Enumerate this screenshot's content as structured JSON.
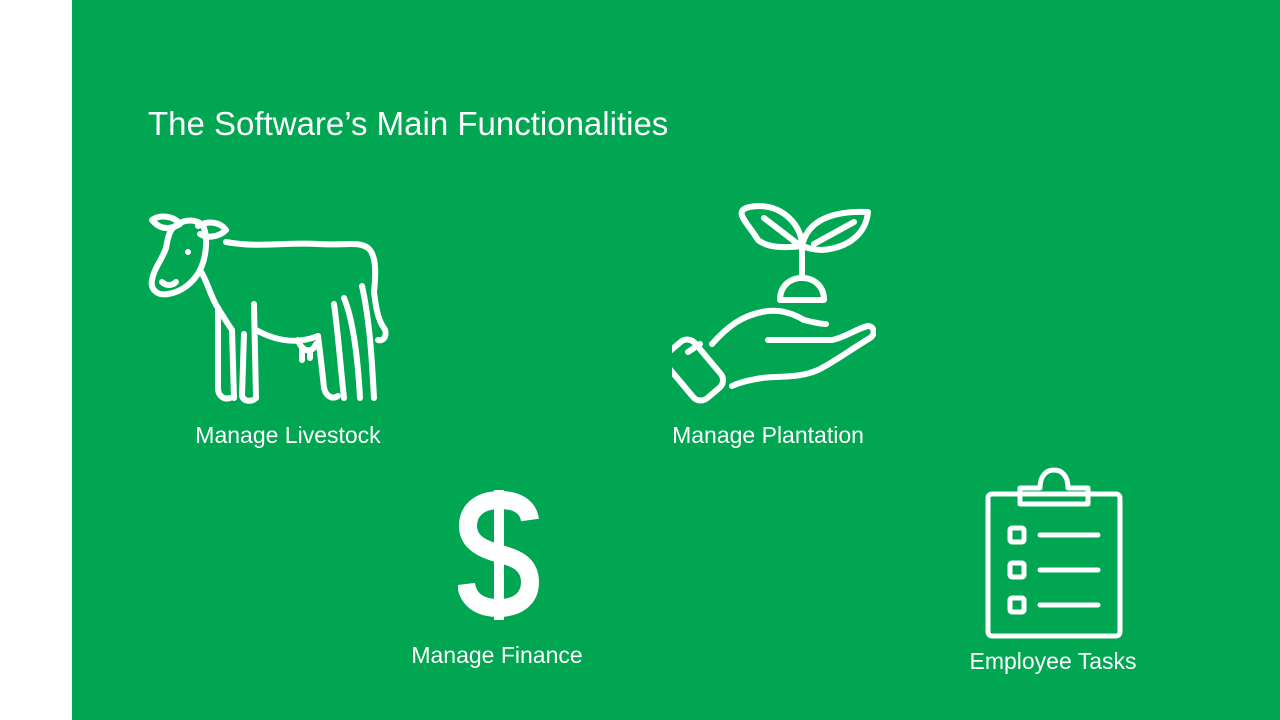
{
  "slide": {
    "background_color": "#00a651",
    "text_color": "#ffffff",
    "title": "The Software’s Main Functionalities"
  },
  "features": [
    {
      "label": "Manage Livestock",
      "icon": "cow-icon"
    },
    {
      "label": "Manage Plantation",
      "icon": "hand-sprout-icon"
    },
    {
      "label": "Manage Finance",
      "icon": "dollar-sign-icon"
    },
    {
      "label": "Employee Tasks",
      "icon": "clipboard-checklist-icon"
    }
  ]
}
